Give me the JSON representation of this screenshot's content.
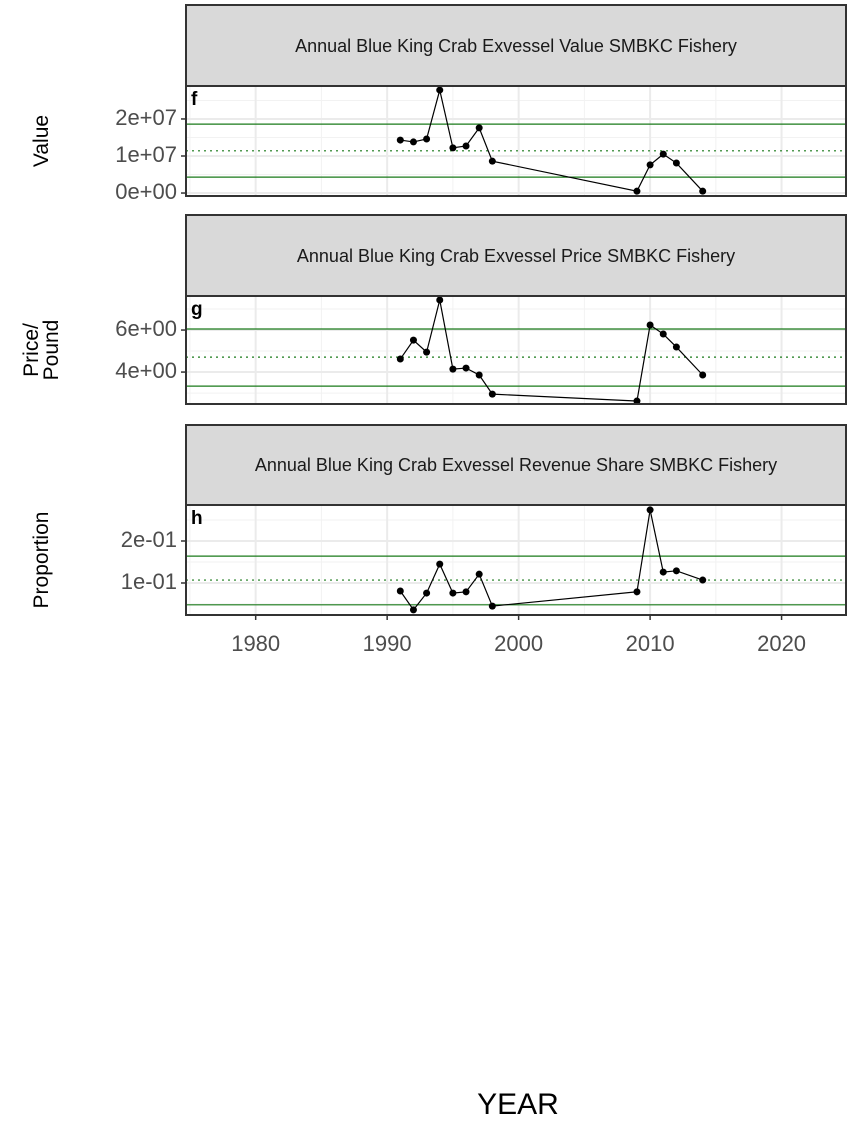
{
  "chart_data": [
    {
      "type": "line",
      "title": "Annual Blue King Crab Exvessel Value SMBKC Fishery",
      "ylabel": "Value",
      "panel_label": "f",
      "x": [
        1991,
        1992,
        1993,
        1994,
        1995,
        1996,
        1997,
        1998,
        2009,
        2010,
        2011,
        2012,
        2014
      ],
      "values": [
        14300000,
        13800000,
        14600000,
        27800000,
        12200000,
        12700000,
        17600000,
        8600000,
        500000,
        7600000,
        10500000,
        8100000,
        500000
      ],
      "color": "#000000",
      "xlim": [
        1974.7,
        2024.9
      ],
      "xticks": [
        1980,
        1990,
        2000,
        2010,
        2020
      ],
      "ylim": [
        -800000,
        28900000
      ],
      "yticks": [
        {
          "value": 0,
          "label": "0e+00"
        },
        {
          "value": 10000000,
          "label": "1e+07"
        },
        {
          "value": 20000000,
          "label": "2e+07"
        }
      ],
      "reference_lines": [
        {
          "value": 18600000,
          "style": "solid",
          "color": "#1a7a1a"
        },
        {
          "value": 11400000,
          "style": "dotted",
          "color": "#1a7a1a"
        },
        {
          "value": 4300000,
          "style": "solid",
          "color": "#1a7a1a"
        }
      ],
      "grid": true
    },
    {
      "type": "line",
      "title": "Annual Blue King Crab Exvessel Price SMBKC Fishery",
      "ylabel": "Price/\nPound",
      "panel_label": "g",
      "x": [
        1991,
        1992,
        1993,
        1994,
        1995,
        1996,
        1997,
        1998,
        2009,
        2010,
        2011,
        2012,
        2014
      ],
      "values": [
        4.62,
        5.52,
        4.95,
        7.43,
        4.14,
        4.19,
        3.86,
        2.95,
        2.62,
        6.24,
        5.81,
        5.19,
        3.86
      ],
      "color": "#000000",
      "xlim": [
        1974.7,
        2024.9
      ],
      "xticks": [
        1980,
        1990,
        2000,
        2010,
        2020
      ],
      "ylim": [
        2.48,
        7.62
      ],
      "yticks": [
        {
          "value": 4,
          "label": "4e+00"
        },
        {
          "value": 6,
          "label": "6e+00"
        }
      ],
      "reference_lines": [
        {
          "value": 6.05,
          "style": "solid",
          "color": "#1a7a1a"
        },
        {
          "value": 4.71,
          "style": "dotted",
          "color": "#1a7a1a"
        },
        {
          "value": 3.33,
          "style": "solid",
          "color": "#1a7a1a"
        }
      ],
      "grid": true
    },
    {
      "type": "line",
      "title": "Annual Blue King Crab Exvessel Revenue Share SMBKC Fishery",
      "ylabel": "Proportion",
      "panel_label": "h",
      "xlabel": "YEAR",
      "x": [
        1991,
        1992,
        1993,
        1994,
        1995,
        1996,
        1997,
        1998,
        2009,
        2010,
        2011,
        2012,
        2014
      ],
      "values": [
        0.081,
        0.036,
        0.076,
        0.145,
        0.076,
        0.079,
        0.121,
        0.045,
        0.079,
        0.274,
        0.126,
        0.129,
        0.107
      ],
      "color": "#000000",
      "xlim": [
        1974.7,
        2024.9
      ],
      "xticks": [
        1980,
        1990,
        2000,
        2010,
        2020
      ],
      "ylim": [
        0.0238,
        0.2857
      ],
      "yticks": [
        {
          "value": 0.1,
          "label": "1e-01"
        },
        {
          "value": 0.2,
          "label": "2e-01"
        }
      ],
      "reference_lines": [
        {
          "value": 0.164,
          "style": "solid",
          "color": "#1a7a1a"
        },
        {
          "value": 0.107,
          "style": "dotted",
          "color": "#1a7a1a"
        },
        {
          "value": 0.048,
          "style": "solid",
          "color": "#1a7a1a"
        }
      ],
      "grid": true
    }
  ]
}
